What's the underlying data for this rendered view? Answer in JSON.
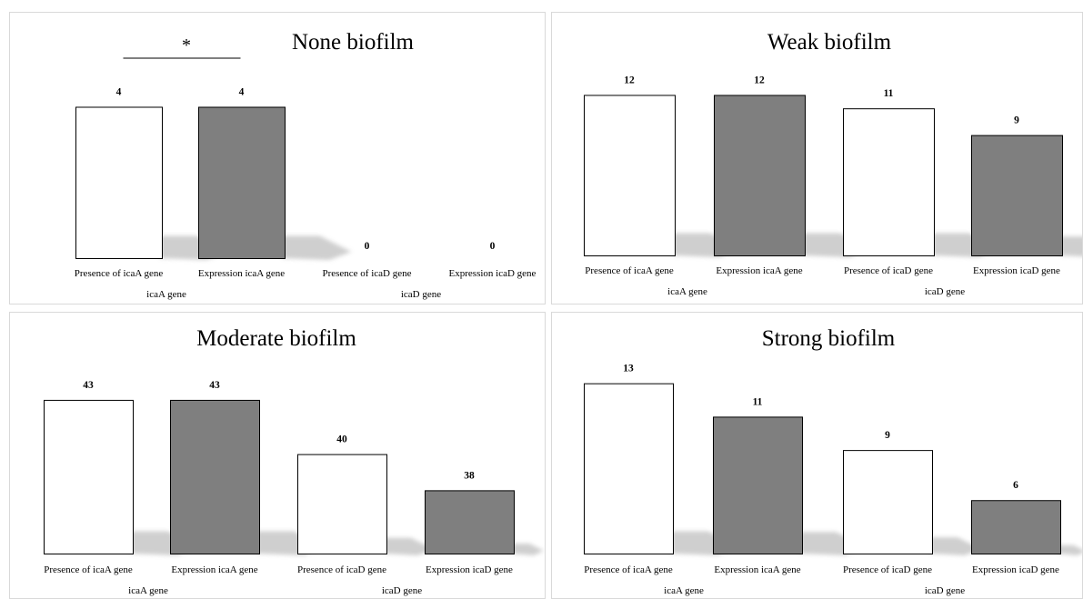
{
  "figure": {
    "colors": {
      "presence_fill": "#ffffff",
      "expression_fill": "#7f7f7f",
      "bar_stroke": "#000000",
      "shadow": "#bfbfbf",
      "panel_border": "#d9d9d9"
    }
  },
  "chart_data": [
    {
      "type": "bar",
      "title": "None biofilm",
      "categories": [
        "Presence of icaA gene",
        "Expression icaA gene",
        "Presence of icaD gene",
        "Expression icaD gene"
      ],
      "values": [
        4,
        4,
        0,
        0
      ],
      "fills": [
        "presence",
        "expression",
        "presence",
        "expression"
      ],
      "groups": [
        {
          "label": "icaA gene",
          "categories": [
            0,
            1
          ]
        },
        {
          "label": "icaD gene",
          "categories": [
            2,
            3
          ]
        }
      ],
      "significance": {
        "symbol": "*",
        "between": [
          0,
          1
        ]
      },
      "ylim": [
        0,
        4.3
      ]
    },
    {
      "type": "bar",
      "title": "Weak biofilm",
      "categories": [
        "Presence of icaA gene",
        "Expression icaA gene",
        "Presence of icaD gene",
        "Expression icaD gene"
      ],
      "values": [
        12,
        12,
        11,
        9
      ],
      "fills": [
        "presence",
        "expression",
        "presence",
        "expression"
      ],
      "groups": [
        {
          "label": "icaA gene",
          "categories": [
            0,
            1
          ]
        },
        {
          "label": "icaD gene",
          "categories": [
            2,
            3
          ]
        }
      ],
      "ylim": [
        0,
        12.1
      ]
    },
    {
      "type": "bar",
      "title": "Moderate biofilm",
      "categories": [
        "Presence of icaA gene",
        "Expression icaA gene",
        "Presence of icaD gene",
        "Expression icaD gene"
      ],
      "values": [
        43,
        43,
        40,
        38
      ],
      "fills": [
        "presence",
        "expression",
        "presence",
        "expression"
      ],
      "groups": [
        {
          "label": "icaA gene",
          "categories": [
            0,
            1
          ]
        },
        {
          "label": "icaD gene",
          "categories": [
            2,
            3
          ]
        }
      ],
      "ylim": [
        34.5,
        43.7
      ]
    },
    {
      "type": "bar",
      "title": "Strong biofilm",
      "categories": [
        "Presence of icaA gene",
        "Expression icaA gene",
        "Presence of icaD gene",
        "Expression icaD gene"
      ],
      "values": [
        13,
        11,
        9,
        6
      ],
      "fills": [
        "presence",
        "expression",
        "presence",
        "expression"
      ],
      "groups": [
        {
          "label": "icaA gene",
          "categories": [
            0,
            1
          ]
        },
        {
          "label": "icaD gene",
          "categories": [
            2,
            3
          ]
        }
      ],
      "ylim": [
        2.8,
        13.2
      ]
    }
  ]
}
